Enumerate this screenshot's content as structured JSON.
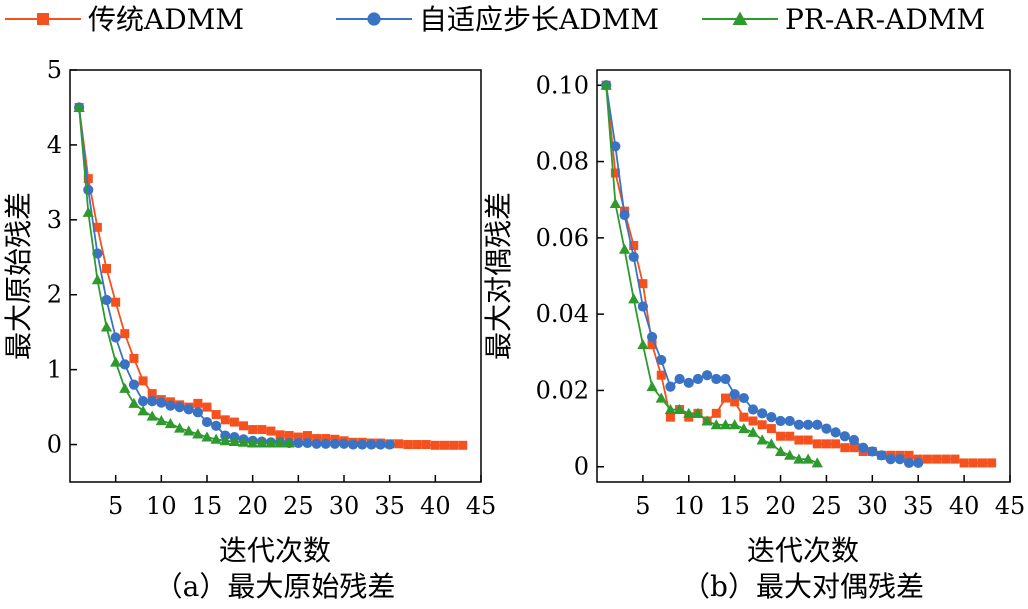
{
  "legend": [
    {
      "name": "传统ADMM",
      "color": "#F4511E",
      "marker": "square"
    },
    {
      "name": "自适应步长ADMM",
      "color": "#3B73C4",
      "marker": "circle"
    },
    {
      "name": "PR-AR-ADMM",
      "color": "#2E9A2E",
      "marker": "triangle"
    }
  ],
  "chart_data": [
    {
      "type": "line",
      "caption": "（a）最大原始残差",
      "xlabel": "迭代次数",
      "ylabel": "最大原始残差",
      "xlim": [
        0,
        45
      ],
      "ylim": [
        -0.5,
        5
      ],
      "xticks": [
        5,
        10,
        15,
        20,
        25,
        30,
        35,
        40,
        45
      ],
      "yticks": [
        0,
        1,
        2,
        3,
        4,
        5
      ],
      "ytick_labels": [
        "0",
        "1",
        "2",
        "3",
        "4",
        "5"
      ],
      "series": [
        {
          "name": "传统ADMM",
          "x": [
            1,
            2,
            3,
            4,
            5,
            6,
            7,
            8,
            9,
            10,
            11,
            12,
            13,
            14,
            15,
            16,
            17,
            18,
            19,
            20,
            21,
            22,
            23,
            24,
            25,
            26,
            27,
            28,
            29,
            30,
            31,
            32,
            33,
            34,
            35,
            36,
            37,
            38,
            39,
            40,
            41,
            42,
            43
          ],
          "y": [
            4.5,
            3.55,
            2.9,
            2.35,
            1.9,
            1.48,
            1.15,
            0.85,
            0.68,
            0.6,
            0.57,
            0.53,
            0.5,
            0.55,
            0.5,
            0.4,
            0.33,
            0.3,
            0.25,
            0.2,
            0.2,
            0.18,
            0.13,
            0.12,
            0.1,
            0.12,
            0.08,
            0.08,
            0.07,
            0.05,
            0.03,
            0.03,
            0.02,
            0.02,
            0.01,
            0.01,
            0.0,
            0.0,
            0.0,
            -0.01,
            -0.01,
            -0.01,
            -0.01
          ]
        },
        {
          "name": "自适应步长ADMM",
          "x": [
            1,
            2,
            3,
            4,
            5,
            6,
            7,
            8,
            9,
            10,
            11,
            12,
            13,
            14,
            15,
            16,
            17,
            18,
            19,
            20,
            21,
            22,
            23,
            24,
            25,
            26,
            27,
            28,
            29,
            30,
            31,
            32,
            33,
            34,
            35
          ],
          "y": [
            4.5,
            3.4,
            2.55,
            1.93,
            1.43,
            1.07,
            0.8,
            0.58,
            0.58,
            0.56,
            0.52,
            0.5,
            0.47,
            0.43,
            0.3,
            0.25,
            0.12,
            0.1,
            0.07,
            0.05,
            0.04,
            0.03,
            0.03,
            0.02,
            0.02,
            0.02,
            0.01,
            0.01,
            0.01,
            0.01,
            0.0,
            0.0,
            0.0,
            0.0,
            0.0
          ]
        },
        {
          "name": "PR-AR-ADMM",
          "x": [
            1,
            2,
            3,
            4,
            5,
            6,
            7,
            8,
            9,
            10,
            11,
            12,
            13,
            14,
            15,
            16,
            17,
            18,
            19,
            20,
            21,
            22,
            23,
            24
          ],
          "y": [
            4.5,
            3.1,
            2.2,
            1.57,
            1.1,
            0.75,
            0.55,
            0.45,
            0.38,
            0.32,
            0.28,
            0.22,
            0.18,
            0.14,
            0.1,
            0.07,
            0.05,
            0.04,
            0.03,
            0.02,
            0.02,
            0.02,
            0.02,
            0.02
          ]
        }
      ]
    },
    {
      "type": "line",
      "caption": "（b）最大对偶残差",
      "xlabel": "迭代次数",
      "ylabel": "最大对偶残差",
      "xlim": [
        0,
        45
      ],
      "ylim": [
        -0.004,
        0.104
      ],
      "xticks": [
        5,
        10,
        15,
        20,
        25,
        30,
        35,
        40,
        45
      ],
      "yticks": [
        0,
        0.02,
        0.04,
        0.06,
        0.08,
        0.1
      ],
      "ytick_labels": [
        "0",
        "0.02",
        "0.04",
        "0.06",
        "0.08",
        "0.10"
      ],
      "series": [
        {
          "name": "传统ADMM",
          "x": [
            1,
            2,
            3,
            4,
            5,
            6,
            7,
            8,
            9,
            10,
            11,
            12,
            13,
            14,
            15,
            16,
            17,
            18,
            19,
            20,
            21,
            22,
            23,
            24,
            25,
            26,
            27,
            28,
            29,
            30,
            31,
            32,
            33,
            34,
            35,
            36,
            37,
            38,
            39,
            40,
            41,
            42,
            43
          ],
          "y": [
            0.1,
            0.077,
            0.067,
            0.058,
            0.048,
            0.032,
            0.024,
            0.013,
            0.015,
            0.013,
            0.014,
            0.012,
            0.014,
            0.018,
            0.017,
            0.013,
            0.012,
            0.011,
            0.01,
            0.008,
            0.008,
            0.007,
            0.007,
            0.006,
            0.006,
            0.006,
            0.005,
            0.005,
            0.004,
            0.004,
            0.003,
            0.003,
            0.003,
            0.003,
            0.002,
            0.002,
            0.002,
            0.002,
            0.002,
            0.001,
            0.001,
            0.001,
            0.001
          ]
        },
        {
          "name": "自适应步长ADMM",
          "x": [
            1,
            2,
            3,
            4,
            5,
            6,
            7,
            8,
            9,
            10,
            11,
            12,
            13,
            14,
            15,
            16,
            17,
            18,
            19,
            20,
            21,
            22,
            23,
            24,
            25,
            26,
            27,
            28,
            29,
            30,
            31,
            32,
            33,
            34,
            35
          ],
          "y": [
            0.1,
            0.084,
            0.066,
            0.055,
            0.042,
            0.034,
            0.028,
            0.021,
            0.023,
            0.022,
            0.023,
            0.024,
            0.023,
            0.023,
            0.019,
            0.018,
            0.015,
            0.014,
            0.013,
            0.012,
            0.012,
            0.011,
            0.011,
            0.011,
            0.01,
            0.009,
            0.008,
            0.007,
            0.005,
            0.004,
            0.003,
            0.002,
            0.002,
            0.001,
            0.001
          ]
        },
        {
          "name": "PR-AR-ADMM",
          "x": [
            1,
            2,
            3,
            4,
            5,
            6,
            7,
            8,
            9,
            10,
            11,
            12,
            13,
            14,
            15,
            16,
            17,
            18,
            19,
            20,
            21,
            22,
            23,
            24
          ],
          "y": [
            0.1,
            0.069,
            0.057,
            0.044,
            0.032,
            0.021,
            0.018,
            0.015,
            0.015,
            0.014,
            0.014,
            0.012,
            0.011,
            0.011,
            0.011,
            0.01,
            0.009,
            0.007,
            0.006,
            0.004,
            0.003,
            0.002,
            0.002,
            0.001
          ]
        }
      ]
    }
  ]
}
